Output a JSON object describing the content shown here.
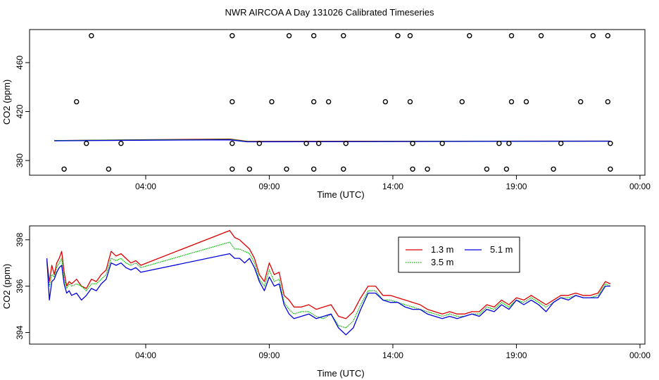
{
  "figure_title": "NWR AIRCOA A  Day 131026  Calibrated Timeseries",
  "colors": {
    "red": "#dd0000",
    "green": "#00bb00",
    "blue": "#0000dd",
    "black": "#000000"
  },
  "chart_data": [
    {
      "type": "scatter+line",
      "title": "",
      "xlabel": "Time (UTC)",
      "ylabel": "CO2 (ppm)",
      "x_unit": "hours UTC",
      "xlim": [
        -0.7,
        24.2
      ],
      "ylim": [
        368,
        487
      ],
      "xticks": [
        4,
        9,
        14,
        19,
        24
      ],
      "xtick_labels": [
        "04:00",
        "09:00",
        "14:00",
        "19:00",
        "00:00"
      ],
      "yticks": [
        380,
        420,
        460
      ],
      "ytick_labels": [
        "380",
        "420",
        "460"
      ],
      "grid": false,
      "scatter_points": [
        [
          1.8,
          482
        ],
        [
          7.5,
          482
        ],
        [
          9.8,
          482
        ],
        [
          10.8,
          482
        ],
        [
          12.0,
          482
        ],
        [
          14.2,
          482
        ],
        [
          14.7,
          482
        ],
        [
          17.1,
          482
        ],
        [
          18.8,
          482
        ],
        [
          20.0,
          482
        ],
        [
          22.1,
          482
        ],
        [
          22.7,
          482
        ],
        [
          1.2,
          428
        ],
        [
          7.5,
          428
        ],
        [
          9.1,
          428
        ],
        [
          10.8,
          428
        ],
        [
          11.4,
          428
        ],
        [
          13.7,
          428
        ],
        [
          14.7,
          428
        ],
        [
          16.8,
          428
        ],
        [
          18.8,
          428
        ],
        [
          19.4,
          428
        ],
        [
          21.6,
          428
        ],
        [
          22.7,
          428
        ],
        [
          1.6,
          394
        ],
        [
          3.0,
          394
        ],
        [
          7.5,
          394
        ],
        [
          8.6,
          394
        ],
        [
          10.5,
          394
        ],
        [
          11.0,
          394
        ],
        [
          12.1,
          394
        ],
        [
          14.8,
          394
        ],
        [
          16.0,
          394
        ],
        [
          18.3,
          394
        ],
        [
          18.7,
          394
        ],
        [
          20.8,
          394
        ],
        [
          22.8,
          394
        ],
        [
          0.7,
          373
        ],
        [
          2.5,
          373
        ],
        [
          7.5,
          373
        ],
        [
          8.2,
          373
        ],
        [
          9.7,
          373
        ],
        [
          10.8,
          373
        ],
        [
          12.0,
          373
        ],
        [
          14.8,
          373
        ],
        [
          15.4,
          373
        ],
        [
          17.8,
          373
        ],
        [
          18.6,
          373
        ],
        [
          20.5,
          373
        ],
        [
          22.8,
          373
        ]
      ],
      "series": [
        {
          "name": "1.3 m",
          "color": "red",
          "x": [
            0.3,
            3.7,
            7.4,
            8.1,
            22.8
          ],
          "values": [
            396.3,
            397.0,
            397.6,
            395.7,
            395.9
          ]
        },
        {
          "name": "3.5 m",
          "color": "green",
          "x": [
            0.3,
            3.7,
            7.4,
            8.1,
            22.8
          ],
          "values": [
            396.3,
            396.8,
            397.2,
            395.5,
            395.9
          ]
        },
        {
          "name": "5.1 m",
          "color": "blue",
          "x": [
            0.3,
            3.7,
            7.4,
            8.1,
            22.8
          ],
          "values": [
            396.1,
            396.6,
            396.9,
            395.3,
            395.8
          ]
        }
      ]
    },
    {
      "type": "line",
      "title": "",
      "xlabel": "Time (UTC)",
      "ylabel": "CO2 (ppm)",
      "x_unit": "hours UTC",
      "xlim": [
        -0.7,
        24.2
      ],
      "ylim": [
        393.5,
        398.6
      ],
      "xticks": [
        4,
        9,
        14,
        19,
        24
      ],
      "xtick_labels": [
        "04:00",
        "09:00",
        "14:00",
        "19:00",
        "00:00"
      ],
      "yticks": [
        394,
        396,
        398
      ],
      "ytick_labels": [
        "394",
        "396",
        "398"
      ],
      "grid": false,
      "legend_position": "top-right",
      "series": [
        {
          "name": "1.3 m",
          "color": "red",
          "x": [
            0.0,
            0.1,
            0.2,
            0.3,
            0.4,
            0.5,
            0.6,
            0.7,
            0.8,
            0.9,
            1.0,
            1.2,
            1.4,
            1.6,
            1.8,
            2.0,
            2.2,
            2.4,
            2.6,
            2.8,
            3.0,
            3.2,
            3.4,
            3.6,
            3.8,
            7.4,
            7.6,
            7.8,
            8.0,
            8.2,
            8.4,
            8.6,
            8.8,
            9.0,
            9.2,
            9.4,
            9.6,
            9.8,
            10.0,
            10.3,
            10.6,
            10.9,
            11.2,
            11.5,
            11.8,
            12.1,
            12.4,
            12.7,
            13.0,
            13.3,
            13.6,
            13.9,
            14.2,
            14.5,
            14.8,
            15.1,
            15.4,
            15.7,
            16.0,
            16.3,
            16.6,
            16.9,
            17.2,
            17.5,
            17.8,
            18.1,
            18.4,
            18.7,
            19.0,
            19.3,
            19.6,
            19.9,
            20.2,
            20.5,
            20.8,
            21.1,
            21.4,
            21.7,
            22.0,
            22.3,
            22.6,
            22.8
          ],
          "values": [
            397.1,
            396.2,
            396.9,
            396.5,
            397.0,
            397.2,
            397.5,
            396.6,
            396.0,
            396.2,
            396.1,
            396.3,
            396.0,
            395.9,
            396.3,
            396.2,
            396.5,
            396.7,
            397.5,
            397.3,
            397.4,
            397.2,
            397.0,
            397.1,
            396.9,
            398.4,
            398.1,
            398.0,
            397.8,
            397.6,
            397.2,
            396.5,
            396.2,
            397.0,
            396.5,
            396.6,
            395.6,
            395.4,
            395.1,
            395.1,
            395.2,
            395.0,
            395.1,
            395.2,
            394.7,
            394.6,
            394.9,
            395.5,
            396.0,
            396.0,
            395.6,
            395.6,
            395.5,
            395.4,
            395.3,
            395.2,
            395.0,
            394.9,
            394.8,
            394.9,
            394.8,
            394.8,
            394.9,
            394.9,
            395.2,
            395.1,
            395.4,
            395.2,
            395.5,
            395.4,
            395.6,
            395.4,
            395.2,
            395.4,
            395.6,
            395.6,
            395.7,
            395.6,
            395.6,
            395.7,
            396.2,
            396.1
          ]
        },
        {
          "name": "3.5 m",
          "color": "green",
          "x": [
            0.0,
            0.1,
            0.2,
            0.3,
            0.4,
            0.5,
            0.6,
            0.7,
            0.8,
            0.9,
            1.0,
            1.2,
            1.4,
            1.6,
            1.8,
            2.0,
            2.2,
            2.4,
            2.6,
            2.8,
            3.0,
            3.2,
            3.4,
            3.6,
            3.8,
            7.4,
            7.6,
            7.8,
            8.0,
            8.2,
            8.4,
            8.6,
            8.8,
            9.0,
            9.2,
            9.4,
            9.6,
            9.8,
            10.0,
            10.3,
            10.6,
            10.9,
            11.2,
            11.5,
            11.8,
            12.1,
            12.4,
            12.7,
            13.0,
            13.3,
            13.6,
            13.9,
            14.2,
            14.5,
            14.8,
            15.1,
            15.4,
            15.7,
            16.0,
            16.3,
            16.6,
            16.9,
            17.2,
            17.5,
            17.8,
            18.1,
            18.4,
            18.7,
            19.0,
            19.3,
            19.6,
            19.9,
            20.2,
            20.5,
            20.8,
            21.1,
            21.4,
            21.7,
            22.0,
            22.3,
            22.6,
            22.8
          ],
          "values": [
            397.0,
            396.0,
            396.5,
            396.4,
            396.8,
            397.0,
            397.2,
            396.3,
            395.9,
            396.1,
            396.0,
            396.1,
            396.0,
            395.8,
            396.1,
            396.1,
            396.3,
            396.5,
            397.2,
            397.1,
            397.2,
            397.0,
            396.9,
            397.0,
            396.8,
            397.9,
            397.6,
            397.6,
            397.5,
            397.4,
            397.0,
            396.3,
            396.0,
            396.7,
            396.2,
            396.3,
            395.3,
            395.0,
            394.8,
            394.9,
            394.9,
            394.7,
            394.6,
            394.8,
            394.3,
            394.2,
            394.5,
            395.2,
            395.8,
            395.8,
            395.4,
            395.4,
            395.3,
            395.2,
            395.1,
            395.0,
            394.9,
            394.8,
            394.7,
            394.8,
            394.7,
            394.7,
            394.8,
            394.8,
            395.1,
            395.0,
            395.3,
            395.1,
            395.4,
            395.3,
            395.5,
            395.3,
            395.1,
            395.3,
            395.5,
            395.5,
            395.6,
            395.5,
            395.5,
            395.6,
            396.1,
            396.0
          ]
        },
        {
          "name": "5.1 m",
          "color": "blue",
          "x": [
            0.0,
            0.1,
            0.2,
            0.3,
            0.4,
            0.5,
            0.6,
            0.7,
            0.8,
            0.9,
            1.0,
            1.2,
            1.4,
            1.6,
            1.8,
            2.0,
            2.2,
            2.4,
            2.6,
            2.8,
            3.0,
            3.2,
            3.4,
            3.6,
            3.8,
            7.4,
            7.6,
            7.8,
            8.0,
            8.2,
            8.4,
            8.6,
            8.8,
            9.0,
            9.2,
            9.4,
            9.6,
            9.8,
            10.0,
            10.3,
            10.6,
            10.9,
            11.2,
            11.5,
            11.8,
            12.1,
            12.4,
            12.7,
            13.0,
            13.3,
            13.6,
            13.9,
            14.2,
            14.5,
            14.8,
            15.1,
            15.4,
            15.7,
            16.0,
            16.3,
            16.6,
            16.9,
            17.2,
            17.5,
            17.8,
            18.1,
            18.4,
            18.7,
            19.0,
            19.3,
            19.6,
            19.9,
            20.2,
            20.5,
            20.8,
            21.1,
            21.4,
            21.7,
            22.0,
            22.3,
            22.6,
            22.8
          ],
          "values": [
            397.2,
            395.4,
            396.2,
            396.3,
            396.6,
            396.8,
            396.9,
            396.1,
            395.7,
            395.8,
            395.6,
            395.7,
            395.4,
            395.6,
            395.9,
            395.8,
            396.1,
            396.3,
            397.0,
            396.9,
            397.0,
            396.8,
            396.7,
            396.8,
            396.6,
            397.4,
            397.2,
            397.2,
            397.0,
            397.2,
            396.8,
            396.2,
            395.8,
            396.4,
            396.0,
            396.1,
            395.2,
            394.8,
            394.6,
            394.7,
            394.8,
            394.6,
            394.7,
            394.8,
            394.2,
            393.9,
            394.2,
            395.0,
            395.7,
            395.7,
            395.4,
            395.3,
            395.3,
            395.1,
            395.0,
            395.0,
            394.8,
            394.7,
            394.6,
            394.7,
            394.6,
            394.7,
            394.8,
            394.7,
            395.0,
            394.9,
            395.2,
            395.0,
            395.4,
            395.2,
            395.4,
            395.2,
            394.9,
            395.3,
            395.5,
            395.4,
            395.6,
            395.5,
            395.5,
            395.5,
            396.0,
            396.0
          ]
        }
      ]
    }
  ]
}
